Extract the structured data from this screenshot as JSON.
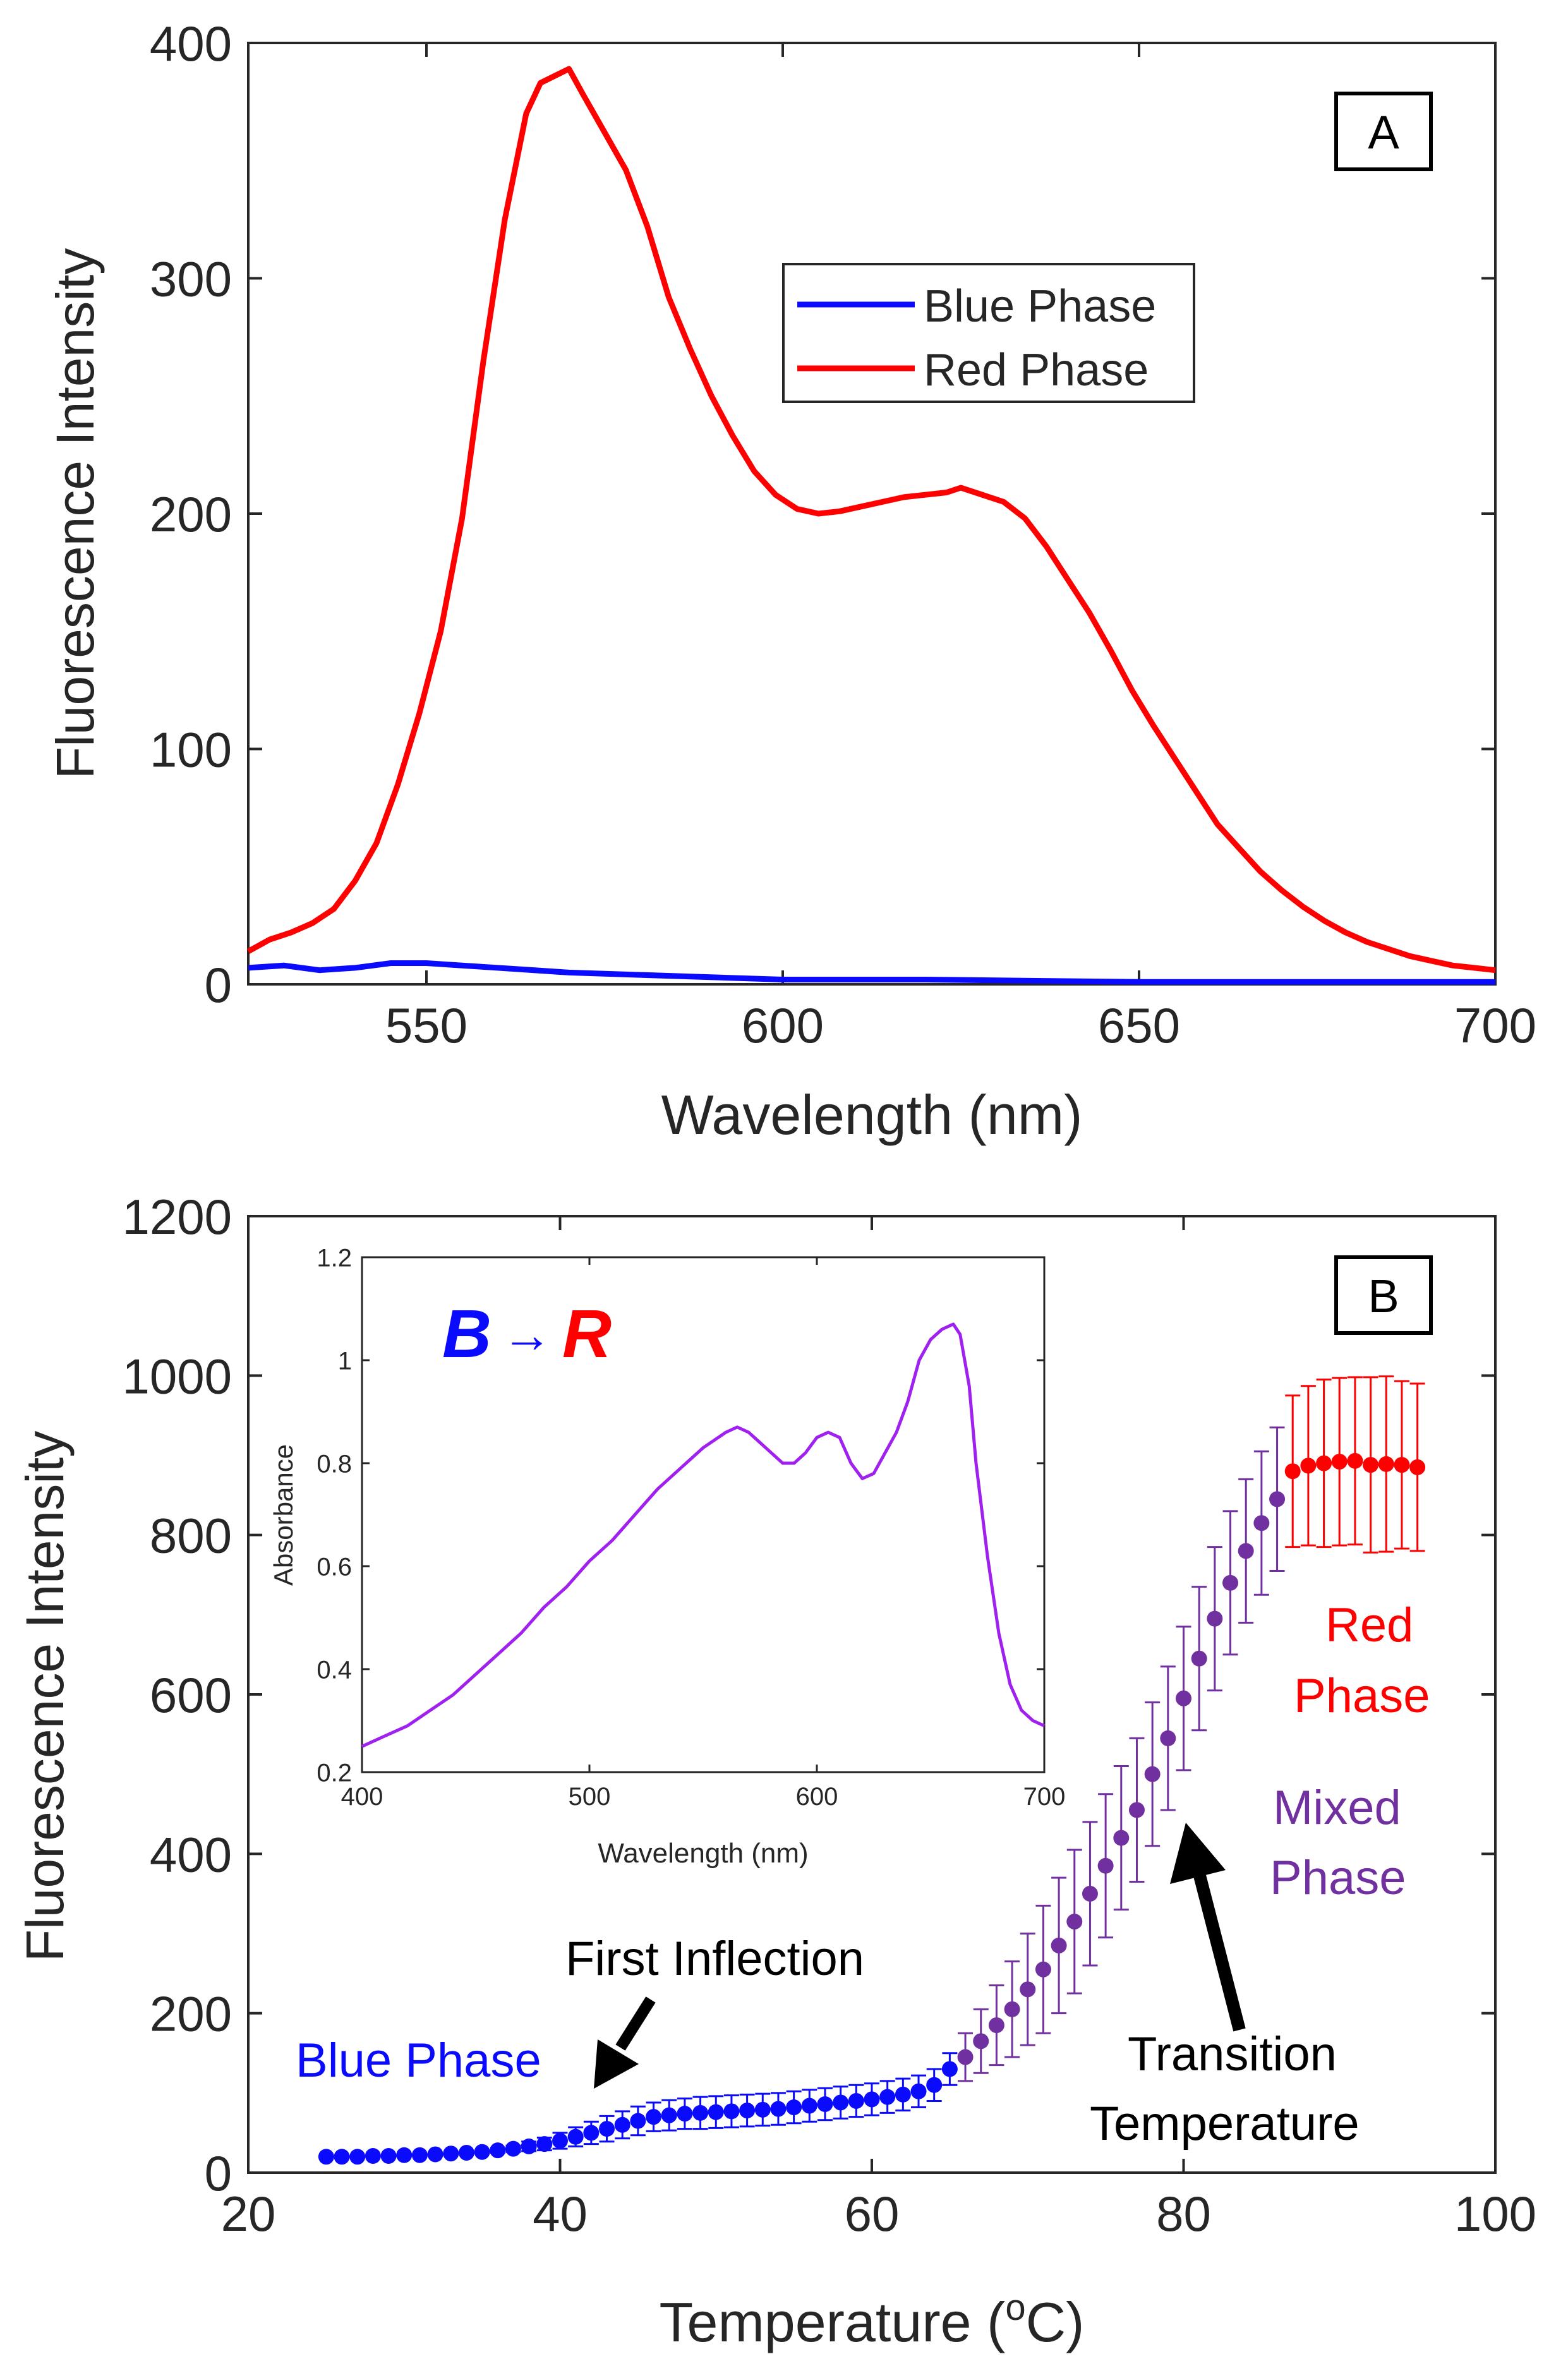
{
  "chart_data": [
    {
      "panel": "A",
      "type": "line",
      "xlabel": "Wavelength (nm)",
      "ylabel": "Fluorescence Intensity",
      "xlim": [
        525,
        700
      ],
      "ylim": [
        0,
        400
      ],
      "xticks": [
        550,
        600,
        650,
        700
      ],
      "yticks": [
        0,
        100,
        200,
        300,
        400
      ],
      "grid": false,
      "legend_position": "upper-center",
      "series": [
        {
          "name": "Blue Phase",
          "color": "#0a0aff",
          "x": [
            525,
            530,
            535,
            540,
            545,
            550,
            555,
            560,
            570,
            580,
            600,
            620,
            650,
            680,
            700
          ],
          "y": [
            7,
            8,
            6,
            7,
            9,
            9,
            8,
            7,
            5,
            4,
            2,
            2,
            1,
            1,
            1
          ]
        },
        {
          "name": "Red Phase",
          "color": "#ff0000",
          "x": [
            525,
            528,
            531,
            534,
            537,
            540,
            543,
            546,
            549,
            552,
            555,
            558,
            561,
            564,
            566,
            568,
            570,
            572,
            575,
            578,
            581,
            584,
            587,
            590,
            593,
            596,
            599,
            602,
            605,
            608,
            611,
            614,
            617,
            620,
            623,
            625,
            628,
            631,
            634,
            637,
            640,
            643,
            646,
            649,
            652,
            655,
            658,
            661,
            664,
            667,
            670,
            673,
            676,
            679,
            682,
            685,
            688,
            691,
            694,
            697,
            700
          ],
          "y": [
            14,
            19,
            22,
            26,
            32,
            44,
            60,
            85,
            115,
            150,
            198,
            265,
            325,
            370,
            383,
            386,
            389,
            378,
            362,
            346,
            322,
            292,
            270,
            250,
            233,
            218,
            208,
            202,
            200,
            201,
            203,
            205,
            207,
            208,
            209,
            211,
            208,
            205,
            198,
            186,
            172,
            158,
            142,
            125,
            110,
            96,
            82,
            68,
            58,
            48,
            40,
            33,
            27,
            22,
            18,
            15,
            12,
            10,
            8,
            7,
            6
          ]
        }
      ],
      "annotations": []
    },
    {
      "panel": "B",
      "type": "scatter",
      "xlabel": "Temperature (",
      "xlabel_super": "o",
      "xlabel_unit": "C)",
      "ylabel": "Fluorescence Intensity",
      "xlim": [
        20,
        100
      ],
      "ylim": [
        0,
        1200
      ],
      "xticks": [
        20,
        40,
        60,
        80,
        100
      ],
      "yticks": [
        0,
        200,
        400,
        600,
        800,
        1000,
        1200
      ],
      "grid": false,
      "series": [
        {
          "name": "Blue Phase",
          "color": "#0a0aff",
          "x": [
            25,
            26,
            27,
            28,
            29,
            30,
            31,
            32,
            33,
            34,
            35,
            36,
            37,
            38,
            39,
            40,
            41,
            42,
            43,
            44,
            45,
            46,
            47,
            48,
            49,
            50,
            51,
            52,
            53,
            54,
            55,
            56,
            57,
            58,
            59,
            60,
            61,
            62,
            63,
            64,
            65
          ],
          "y": [
            20,
            20,
            20,
            21,
            21,
            22,
            22,
            23,
            24,
            25,
            26,
            28,
            30,
            33,
            36,
            40,
            45,
            50,
            55,
            60,
            65,
            70,
            72,
            74,
            75,
            76,
            77,
            78,
            79,
            80,
            82,
            84,
            86,
            88,
            90,
            92,
            95,
            98,
            102,
            110,
            130
          ],
          "err": [
            0,
            0,
            0,
            0,
            0,
            0,
            0,
            0,
            0,
            1,
            2,
            3,
            4,
            6,
            8,
            10,
            12,
            14,
            16,
            17,
            18,
            18,
            19,
            19,
            20,
            20,
            20,
            20,
            20,
            20,
            20,
            20,
            20,
            20,
            20,
            20,
            20,
            20,
            20,
            20,
            20
          ]
        },
        {
          "name": "Mixed Phase",
          "color": "#7030a0",
          "x": [
            66,
            67,
            68,
            69,
            70,
            71,
            72,
            73,
            74,
            75,
            76,
            77,
            78,
            79,
            80,
            81,
            82,
            83,
            84,
            85,
            86
          ],
          "y": [
            145,
            165,
            185,
            205,
            230,
            255,
            285,
            315,
            350,
            385,
            420,
            455,
            500,
            545,
            595,
            645,
            695,
            740,
            780,
            815,
            845
          ],
          "err": [
            30,
            40,
            50,
            60,
            70,
            80,
            85,
            90,
            90,
            90,
            90,
            90,
            90,
            90,
            90,
            90,
            90,
            90,
            90,
            90,
            90
          ]
        },
        {
          "name": "Red Phase",
          "color": "#ff0000",
          "x": [
            87,
            88,
            89,
            90,
            91,
            92,
            93,
            94,
            95
          ],
          "y": [
            880,
            887,
            890,
            892,
            893,
            888,
            889,
            888,
            885
          ],
          "err": [
            95,
            100,
            105,
            105,
            105,
            110,
            110,
            105,
            105
          ]
        }
      ],
      "annotations": [
        {
          "text": "Blue Phase",
          "color": "#0a0aff"
        },
        {
          "text": "First Inflection",
          "color": "#000000"
        },
        {
          "text": "Transition",
          "color": "#000000"
        },
        {
          "text": "Temperature",
          "color": "#000000"
        },
        {
          "text": "Red",
          "color": "#ff0000"
        },
        {
          "text": "Phase",
          "color": "#ff0000"
        },
        {
          "text": "Mixed",
          "color": "#7030a0"
        },
        {
          "text": "Phase",
          "color": "#7030a0"
        }
      ],
      "inset": {
        "type": "line",
        "xlabel": "Wavelength (nm)",
        "ylabel": "Absorbance",
        "xlim": [
          400,
          700
        ],
        "ylim": [
          0.2,
          1.2
        ],
        "xticks": [
          400,
          500,
          600,
          700
        ],
        "yticks": [
          0.2,
          0.4,
          0.6,
          0.8,
          1,
          1.2
        ],
        "title_b": "B",
        "title_arrow": "→",
        "title_r": "R",
        "title_b_color": "#0a0aff",
        "title_r_color": "#ff0000",
        "series": [
          {
            "name": "Absorbance",
            "color": "#a020f0",
            "x": [
              400,
              410,
              420,
              430,
              440,
              450,
              460,
              470,
              480,
              490,
              500,
              510,
              520,
              530,
              540,
              550,
              560,
              565,
              570,
              575,
              580,
              585,
              590,
              595,
              600,
              605,
              610,
              615,
              620,
              625,
              630,
              635,
              640,
              645,
              650,
              655,
              660,
              663,
              667,
              670,
              675,
              680,
              685,
              690,
              695,
              700
            ],
            "y": [
              0.25,
              0.27,
              0.29,
              0.32,
              0.35,
              0.39,
              0.43,
              0.47,
              0.52,
              0.56,
              0.61,
              0.65,
              0.7,
              0.75,
              0.79,
              0.83,
              0.86,
              0.87,
              0.86,
              0.84,
              0.82,
              0.8,
              0.8,
              0.82,
              0.85,
              0.86,
              0.85,
              0.8,
              0.77,
              0.78,
              0.82,
              0.86,
              0.92,
              1.0,
              1.04,
              1.06,
              1.07,
              1.05,
              0.95,
              0.8,
              0.62,
              0.47,
              0.37,
              0.32,
              0.3,
              0.29
            ]
          }
        ]
      }
    }
  ],
  "panel_labels": {
    "a": "A",
    "b": "B"
  }
}
